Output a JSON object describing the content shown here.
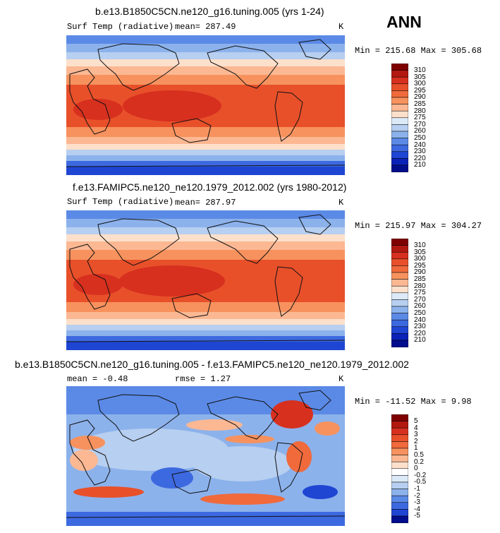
{
  "season": "ANN",
  "panels": [
    {
      "title": "b.e13.B1850C5CN.ne120_g16.tuning.005 (yrs 1-24)",
      "left_label": "Surf Temp (radiative)",
      "mid_label": "mean= 287.49",
      "units": "K",
      "minmax": "Min = 215.68 Max = 305.68",
      "levels": [
        "310",
        "305",
        "300",
        "295",
        "290",
        "285",
        "280",
        "275",
        "270",
        "260",
        "250",
        "240",
        "230",
        "220",
        "210"
      ]
    },
    {
      "title": "f.e13.FAMIPC5.ne120_ne120.1979_2012.002 (yrs 1980-2012)",
      "left_label": "Surf Temp (radiative)",
      "mid_label": "mean= 287.97",
      "units": "K",
      "minmax": "Min = 215.97 Max = 304.27",
      "levels": [
        "310",
        "305",
        "300",
        "295",
        "290",
        "285",
        "280",
        "275",
        "270",
        "260",
        "250",
        "240",
        "230",
        "220",
        "210"
      ]
    },
    {
      "title": "b.e13.B1850C5CN.ne120_g16.tuning.005 - f.e13.FAMIPC5.ne120_ne120.1979_2012.002",
      "left_label": "mean =   -0.48",
      "mid_label": "rmse =    1.27",
      "units": "K",
      "minmax": "Min = -11.52 Max =    9.98",
      "levels": [
        "5",
        "4",
        "3",
        "2",
        "1",
        "0.5",
        "0.2",
        "0",
        "-0.2",
        "-0.5",
        "-1",
        "-2",
        "-3",
        "-4",
        "-5"
      ]
    }
  ],
  "colors": {
    "temp_scale": [
      "#7f0000",
      "#b2180f",
      "#d7301f",
      "#e8502a",
      "#f06a3c",
      "#f7925e",
      "#fbb893",
      "#fde0cb",
      "#dce9f6",
      "#b7cff0",
      "#8cb2ec",
      "#5b8ae6",
      "#3d69e0",
      "#1f45d3",
      "#0b22b8",
      "#000d8c"
    ],
    "diff_scale": [
      "#7f0000",
      "#b2180f",
      "#d7301f",
      "#e8502a",
      "#f06a3c",
      "#f7925e",
      "#fbb893",
      "#fde0cb",
      "#ffffff",
      "#dce9f6",
      "#b7cff0",
      "#8cb2ec",
      "#5b8ae6",
      "#3d69e0",
      "#1f45d3",
      "#000d8c"
    ]
  }
}
